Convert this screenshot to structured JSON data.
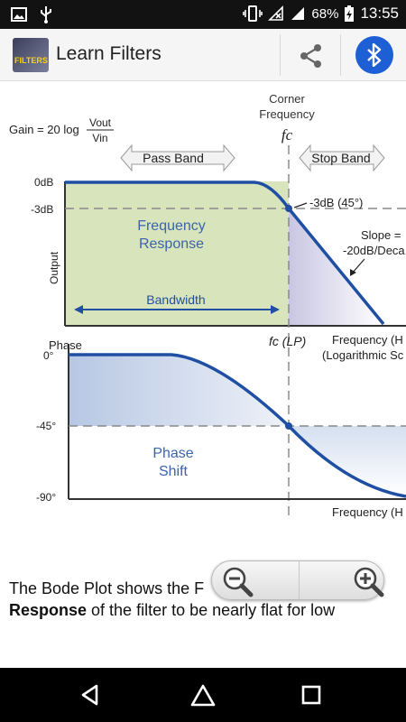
{
  "status_bar": {
    "battery_percent": "68%",
    "time": "13:55",
    "icons": [
      "image-icon",
      "usb-icon",
      "vibrate-icon",
      "no-signal-icon",
      "signal-icon",
      "battery-charging-icon"
    ]
  },
  "app_bar": {
    "title": "Learn Filters",
    "logo_text": "FILTERS",
    "actions": [
      "share-icon",
      "bluetooth-icon"
    ]
  },
  "diagram": {
    "gain_formula": "Gain = 20 log",
    "vout": "Vout",
    "vin": "Vin",
    "corner_frequency_line1": "Corner",
    "corner_frequency_line2": "Frequency",
    "fc": "fc",
    "fc_lp": "fc (LP)",
    "pass_band": "Pass Band",
    "stop_band": "Stop Band",
    "db0": "0dB",
    "db_minus3": "-3dB",
    "minus3db_45": "-3dB (45°)",
    "output": "Output",
    "frequency_response_line1": "Frequency",
    "frequency_response_line2": "Response",
    "bandwidth": "Bandwidth",
    "slope_line1": "Slope =",
    "slope_line2": "-20dB/Deca",
    "frequency_hz_top": "Frequency (H",
    "log_scale": "(Logarithmic Sc",
    "phase": "Phase",
    "deg0": "0°",
    "deg_minus45": "-45°",
    "deg_minus90": "-90°",
    "phase_shift_line1": "Phase",
    "phase_shift_line2": "Shift",
    "frequency_hz_bottom": "Frequency (H"
  },
  "description": {
    "line1_start": "The Bode Plot shows the",
    "line1_end": "F",
    "line2_bold": "Response",
    "line2_rest": " of the filter to be nearly flat for low"
  },
  "zoom": {
    "zoom_out_icon": "zoom-out-icon",
    "zoom_in_icon": "zoom-in-icon"
  },
  "nav_bar": {
    "buttons": [
      "back-icon",
      "home-icon",
      "recents-icon"
    ]
  }
}
